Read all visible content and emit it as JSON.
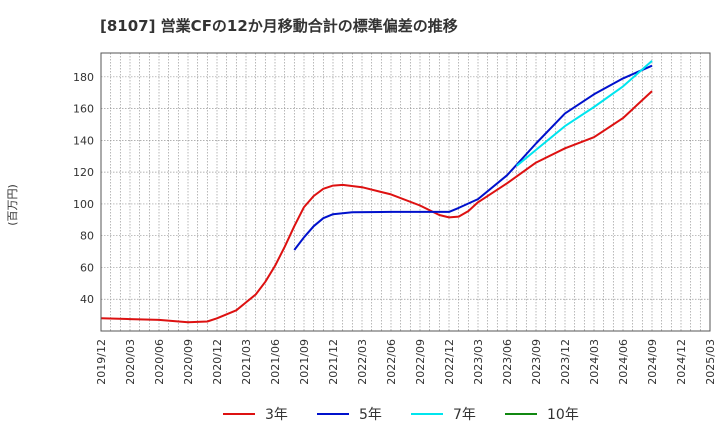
{
  "chart_data": {
    "type": "line",
    "title": "[8107]  営業CFの12か月移動合計の標準偏差の推移",
    "ylabel": "(百万円)",
    "xlabel": "",
    "ylim": [
      20,
      195
    ],
    "yticks": [
      40,
      60,
      80,
      100,
      120,
      140,
      160,
      180
    ],
    "x_tick_labels": [
      "2019/12",
      "2020/03",
      "2020/06",
      "2020/09",
      "2020/12",
      "2021/03",
      "2021/06",
      "2021/09",
      "2021/12",
      "2022/03",
      "2022/06",
      "2022/09",
      "2022/12",
      "2023/03",
      "2023/06",
      "2023/09",
      "2023/12",
      "2024/03",
      "2024/06",
      "2024/09",
      "2024/12",
      "2025/03"
    ],
    "grid": true,
    "legend_position": "bottom",
    "series": [
      {
        "name": "3年",
        "color": "#dd1111",
        "points": [
          [
            "2019/12",
            28
          ],
          [
            "2020/03",
            27.5
          ],
          [
            "2020/06",
            27
          ],
          [
            "2020/09",
            25.5
          ],
          [
            "2020/11",
            26
          ],
          [
            "2020/12",
            28
          ],
          [
            "2021/02",
            33
          ],
          [
            "2021/03",
            38
          ],
          [
            "2021/04",
            43
          ],
          [
            "2021/05",
            51
          ],
          [
            "2021/06",
            61
          ],
          [
            "2021/07",
            73
          ],
          [
            "2021/08",
            86
          ],
          [
            "2021/09",
            98
          ],
          [
            "2021/10",
            105
          ],
          [
            "2021/11",
            109.5
          ],
          [
            "2021/12",
            111.5
          ],
          [
            "2022/01",
            112
          ],
          [
            "2022/03",
            110.5
          ],
          [
            "2022/06",
            106
          ],
          [
            "2022/09",
            99
          ],
          [
            "2022/11",
            93
          ],
          [
            "2022/12",
            91.5
          ],
          [
            "2023/01",
            92
          ],
          [
            "2023/02",
            95.5
          ],
          [
            "2023/03",
            101
          ],
          [
            "2023/06",
            113
          ],
          [
            "2023/09",
            126
          ],
          [
            "2023/12",
            135
          ],
          [
            "2024/03",
            142
          ],
          [
            "2024/06",
            154
          ],
          [
            "2024/09",
            171
          ]
        ]
      },
      {
        "name": "5年",
        "color": "#0011cc",
        "points": [
          [
            "2021/08",
            71
          ],
          [
            "2021/09",
            79
          ],
          [
            "2021/10",
            86
          ],
          [
            "2021/11",
            91
          ],
          [
            "2021/12",
            93.5
          ],
          [
            "2022/02",
            94.8
          ],
          [
            "2022/06",
            95
          ],
          [
            "2022/09",
            95
          ],
          [
            "2022/12",
            95
          ],
          [
            "2023/01",
            97.5
          ],
          [
            "2023/03",
            103
          ],
          [
            "2023/06",
            118
          ],
          [
            "2023/09",
            138
          ],
          [
            "2023/12",
            157
          ],
          [
            "2024/03",
            169
          ],
          [
            "2024/06",
            179
          ],
          [
            "2024/09",
            187
          ]
        ]
      },
      {
        "name": "7年",
        "color": "#00e5ee",
        "points": [
          [
            "2023/07",
            124
          ],
          [
            "2023/09",
            134
          ],
          [
            "2023/12",
            149
          ],
          [
            "2024/03",
            161
          ],
          [
            "2024/06",
            174
          ],
          [
            "2024/09",
            190
          ]
        ]
      },
      {
        "name": "10年",
        "color": "#118811",
        "points": []
      }
    ]
  }
}
